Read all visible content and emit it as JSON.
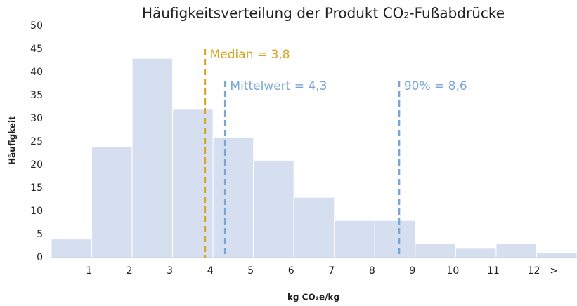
{
  "chart_data": {
    "type": "histogram",
    "title": "Häufigkeitsverteilung der Produkt CO₂-Fußabdrücke",
    "x_label": "kg CO₂e/kg",
    "y_label": "Häufigkeit",
    "bins": [
      0,
      1,
      2,
      3,
      4,
      5,
      6,
      7,
      8,
      9,
      10,
      11,
      12,
      13
    ],
    "values": [
      4,
      24,
      43,
      32,
      26,
      21,
      13,
      8,
      8,
      3,
      2,
      3,
      1
    ],
    "color": "#d5dff0",
    "xlim": [
      0,
      13
    ],
    "xticks": [
      1,
      2,
      3,
      4,
      5,
      6,
      7,
      8,
      9,
      10,
      11,
      12,
      {
        "value": 12.5,
        "label": ">"
      }
    ],
    "ylim": [
      0,
      50
    ],
    "yticks": [
      0,
      5,
      10,
      15,
      20,
      25,
      30,
      35,
      40,
      45,
      50
    ],
    "grid": false,
    "annotations": [
      {
        "label": "Median = 3,8",
        "value": 3.8,
        "color": "#d9a21b"
      },
      {
        "label": "Mittelwert = 4,3",
        "value": 4.3,
        "color": "#7aa6d6"
      },
      {
        "label": "90% = 8,6",
        "value": 8.6,
        "color": "#7aa6d6"
      }
    ]
  }
}
